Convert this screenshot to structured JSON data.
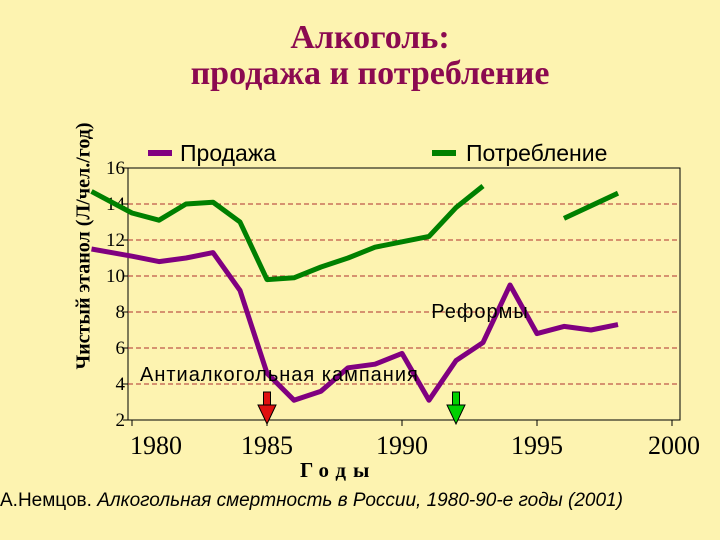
{
  "chart_data": {
    "type": "line",
    "title": [
      "Алкоголь:",
      "продажа и потребление"
    ],
    "xlabel": "Годы",
    "ylabel": "Чистый этанол (Л/чел./год)",
    "xlim": [
      1978.5,
      2000
    ],
    "ylim": [
      2,
      16
    ],
    "yticks": [
      2,
      4,
      6,
      8,
      10,
      12,
      14,
      16
    ],
    "xticks": [
      1980,
      1985,
      1990,
      1995,
      2000
    ],
    "grid": true,
    "legend_position": "top",
    "series": [
      {
        "name": "Продажа",
        "color": "#800080",
        "values": [
          [
            [
              1978.5,
              11.5
            ],
            [
              1980,
              11.1
            ],
            [
              1981,
              10.8
            ],
            [
              1982,
              11.0
            ],
            [
              1983,
              11.3
            ],
            [
              1984,
              9.2
            ],
            [
              1985,
              4.6
            ],
            [
              1986,
              3.1
            ],
            [
              1987,
              3.6
            ],
            [
              1988,
              4.9
            ],
            [
              1989,
              5.1
            ],
            [
              1990,
              5.7
            ],
            [
              1991,
              3.1
            ],
            [
              1992,
              5.3
            ],
            [
              1993,
              6.3
            ],
            [
              1994,
              9.5
            ],
            [
              1995,
              6.8
            ],
            [
              1996,
              7.2
            ],
            [
              1997,
              7.0
            ],
            [
              1998,
              7.3
            ]
          ]
        ]
      },
      {
        "name": "Потребление",
        "color": "#008000",
        "values": [
          [
            [
              1978.5,
              14.7
            ],
            [
              1980,
              13.5
            ],
            [
              1981,
              13.1
            ],
            [
              1982,
              14.0
            ],
            [
              1983,
              14.1
            ],
            [
              1984,
              13.0
            ],
            [
              1985,
              9.8
            ],
            [
              1986,
              9.9
            ],
            [
              1987,
              10.5
            ],
            [
              1988,
              11.0
            ],
            [
              1989,
              11.6
            ],
            [
              1990,
              11.9
            ],
            [
              1991,
              12.2
            ],
            [
              1992,
              13.8
            ],
            [
              1993,
              15.0
            ]
          ],
          [
            [
              1996,
              13.2
            ],
            [
              1998,
              14.6
            ]
          ]
        ]
      }
    ],
    "annotations": [
      {
        "text": "Реформы",
        "x": 1993,
        "y": 8.1
      },
      {
        "text": "Антиалкогольная кампания",
        "x": 1983.5,
        "y": 4.6
      }
    ],
    "markers": [
      {
        "x": 1985,
        "color": "#e01010"
      },
      {
        "x": 1992,
        "color": "#00d000"
      }
    ]
  },
  "source": {
    "author": "А.Немцов.",
    "text": "Алкогольная смертность в России, 1980-90-е годы (2001)"
  }
}
